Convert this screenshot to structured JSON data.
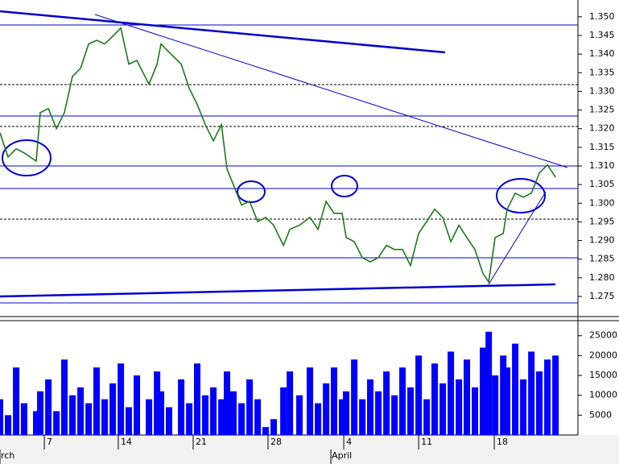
{
  "chart_data": [
    {
      "type": "line",
      "color": "#1a7a1a",
      "x": [
        1.88,
        2.42,
        2.96,
        3.49,
        4.3,
        4.57,
        5.11,
        5.65,
        6.18,
        6.72,
        7.26,
        7.8,
        8.33,
        8.87,
        9.41,
        9.95,
        10.48,
        11.02,
        11.83,
        12.37,
        12.63,
        13.17,
        13.98,
        14.52,
        15.05,
        15.59,
        16.13,
        16.67,
        17.04,
        17.47,
        18.01,
        18.55,
        19.09,
        19.62,
        20.16,
        20.81,
        21.24,
        21.88,
        22.58,
        23.12,
        23.66,
        24.19,
        24.73,
        25.0,
        25.54,
        26.08,
        26.61,
        27.15,
        27.69,
        28.23,
        28.76,
        29.3,
        29.84,
        30.38,
        30.91,
        31.45,
        31.99,
        32.53,
        33.06,
        33.6,
        34.14,
        34.52,
        34.95,
        35.49,
        35.75,
        36.29,
        36.83,
        37.37,
        37.9,
        38.44,
        38.98
      ],
      "values": [
        1.3189,
        1.3124,
        1.3146,
        1.3135,
        1.3113,
        1.3243,
        1.3254,
        1.32,
        1.3243,
        1.334,
        1.3362,
        1.3427,
        1.3437,
        1.3427,
        1.3448,
        1.347,
        1.3373,
        1.3383,
        1.3319,
        1.3373,
        1.3427,
        1.3405,
        1.3373,
        1.3308,
        1.3265,
        1.3211,
        1.3167,
        1.3211,
        1.3092,
        1.3049,
        1.2995,
        1.3005,
        1.2951,
        1.2962,
        1.2941,
        1.2887,
        1.293,
        1.2941,
        1.2962,
        1.293,
        1.3005,
        1.2973,
        1.2973,
        1.2908,
        1.2897,
        1.2854,
        1.2843,
        1.2854,
        1.2887,
        1.2876,
        1.2876,
        1.2833,
        1.2919,
        1.2951,
        1.2984,
        1.2962,
        1.2897,
        1.2941,
        1.2908,
        1.2876,
        1.2811,
        1.2789,
        1.2908,
        1.2919,
        1.2984,
        1.3027,
        1.3016,
        1.3027,
        1.3081,
        1.3103,
        1.307
      ],
      "xlim": [
        1.88,
        40.48
      ],
      "ylim": [
        1.2696,
        1.3545
      ],
      "yticks": [
        1.275,
        {
          "value": 1.28,
          "label": "1.280"
        },
        1.285,
        {
          "value": 1.29,
          "label": "1.290"
        },
        1.295,
        {
          "value": 1.3,
          "label": "1.300"
        },
        1.305,
        {
          "value": 1.31,
          "label": "1.310"
        },
        1.315,
        {
          "value": 1.32,
          "label": "1.320"
        },
        1.325,
        {
          "value": 1.33,
          "label": "1.330"
        },
        1.335,
        {
          "value": 1.34,
          "label": "1.340"
        },
        1.345,
        {
          "value": 1.35,
          "label": "1.350"
        }
      ]
    },
    {
      "type": "bar",
      "color": "#0000ff",
      "x": [
        1.88,
        2.42,
        2.96,
        3.49,
        4.3,
        4.57,
        5.11,
        5.65,
        6.18,
        6.72,
        7.26,
        7.8,
        8.33,
        8.87,
        9.41,
        9.95,
        10.48,
        11.02,
        11.83,
        12.37,
        12.63,
        13.17,
        13.98,
        14.52,
        15.05,
        15.59,
        16.13,
        16.67,
        17.04,
        17.47,
        18.01,
        18.55,
        19.09,
        19.62,
        20.16,
        20.81,
        21.24,
        21.88,
        22.58,
        23.12,
        23.66,
        24.19,
        24.73,
        25.0,
        25.54,
        26.08,
        26.61,
        27.15,
        27.69,
        28.23,
        28.76,
        29.3,
        29.84,
        30.38,
        30.91,
        31.45,
        31.99,
        32.53,
        33.06,
        33.6,
        34.14,
        34.52,
        34.95,
        35.49,
        35.75,
        36.29,
        36.83,
        37.37,
        37.9,
        38.44,
        38.98
      ],
      "values": [
        9000,
        5000,
        17000,
        8000,
        6000,
        11000,
        14000,
        6000,
        19000,
        10000,
        12000,
        8000,
        17000,
        9000,
        13000,
        18000,
        7000,
        15000,
        9000,
        16000,
        11000,
        7000,
        14000,
        8000,
        18000,
        10000,
        12000,
        9000,
        16000,
        11000,
        8000,
        14000,
        9000,
        2000,
        4000,
        12000,
        16000,
        10000,
        17000,
        8000,
        13000,
        17000,
        9000,
        11000,
        19000,
        9000,
        14000,
        11000,
        16000,
        10000,
        17000,
        12000,
        20000,
        9000,
        18000,
        13000,
        21000,
        14000,
        19000,
        12000,
        22000,
        26000,
        15000,
        20000,
        17000,
        23000,
        14000,
        21000,
        16000,
        19000,
        20000
      ],
      "xlim": [
        1.88,
        40.48
      ],
      "ylim": [
        0,
        28800
      ],
      "yticks": [
        5000,
        10000,
        15000,
        20000,
        25000
      ],
      "xticks": [
        {
          "value": 4.84,
          "label": "7"
        },
        {
          "value": 9.78,
          "label": "14"
        },
        {
          "value": 14.78,
          "label": "21"
        },
        {
          "value": 19.78,
          "label": "28"
        },
        {
          "value": 24.84,
          "label": "4"
        },
        {
          "value": 29.84,
          "label": "11"
        },
        {
          "value": 34.89,
          "label": "18"
        }
      ],
      "month_labels": [
        {
          "value": 1.88,
          "label": "rch"
        },
        {
          "value": 23.98,
          "label": "April"
        }
      ]
    }
  ]
}
